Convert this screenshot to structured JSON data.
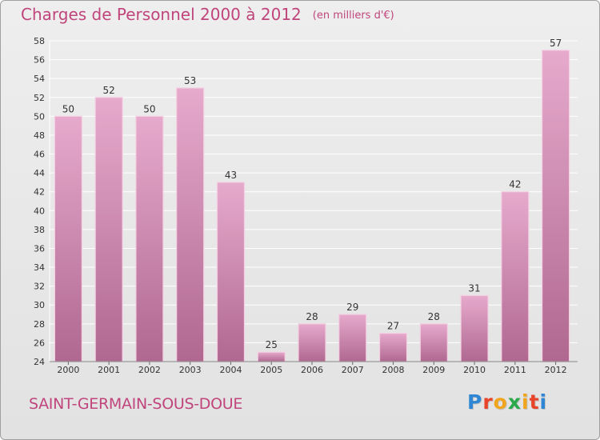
{
  "title": "Charges de Personnel 2000 à 2012",
  "subtitle": "(en milliers d'€)",
  "place": "SAINT-GERMAIN-SOUS-DOUE",
  "brand": {
    "text": "Proxiti",
    "letter_colors": [
      "#2f86d4",
      "#e8442a",
      "#f1a51c",
      "#2aa84a",
      "#f1a51c",
      "#e8442a",
      "#2f86d4"
    ]
  },
  "colors": {
    "bar_light": "#e6aacd",
    "bar_dark": "#b06890",
    "accent": "#c0457c",
    "grid": "#ffffff",
    "axis_text": "#333333"
  },
  "chart_data": {
    "type": "bar",
    "categories": [
      "2000",
      "2001",
      "2002",
      "2003",
      "2004",
      "2005",
      "2006",
      "2007",
      "2008",
      "2009",
      "2010",
      "2011",
      "2012"
    ],
    "values": [
      50,
      52,
      50,
      53,
      43,
      25,
      28,
      29,
      27,
      28,
      31,
      42,
      57
    ],
    "ylim": [
      24,
      58
    ],
    "yticks": [
      24,
      26,
      28,
      30,
      32,
      34,
      36,
      38,
      40,
      42,
      44,
      46,
      48,
      50,
      52,
      54,
      56,
      58
    ],
    "grid": true
  }
}
